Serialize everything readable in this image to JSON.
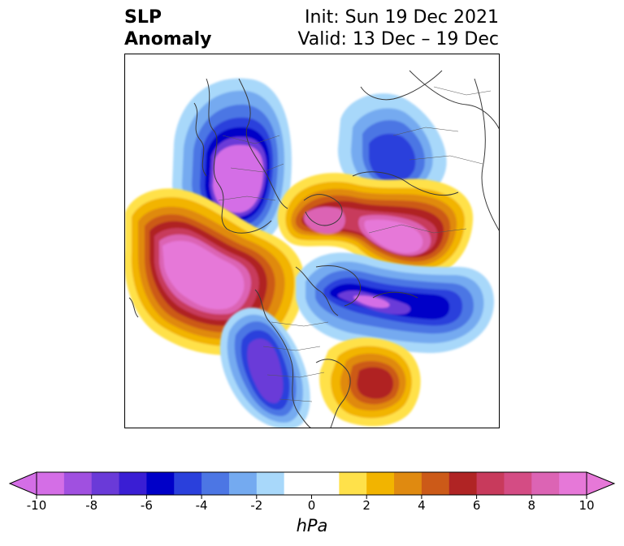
{
  "title": {
    "left_line1": "SLP",
    "left_line2": "Anomaly",
    "right_line1": "Init: Sun 19 Dec 2021",
    "right_line2": "Valid: 13 Dec – 19 Dec"
  },
  "colorbar": {
    "units": "hPa",
    "ticks": [
      "-10",
      "-8",
      "-6",
      "-4",
      "-2",
      "0",
      "2",
      "4",
      "6",
      "8",
      "10"
    ],
    "levels": [
      -10,
      -9,
      -8,
      -7,
      -6,
      -5,
      -4,
      -3,
      -2,
      -1,
      1,
      2,
      3,
      4,
      5,
      6,
      7,
      8,
      9,
      10
    ],
    "colors": [
      "#d46ee6",
      "#a050e0",
      "#6a3ad8",
      "#3a1ed4",
      "#0000c8",
      "#2a40dc",
      "#4c76e4",
      "#74aaf0",
      "#a8d8fa",
      "#ffffff",
      "#ffffff",
      "#ffe14a",
      "#f2b400",
      "#e08a10",
      "#cc5a18",
      "#b02424",
      "#c83a5c",
      "#d44c84",
      "#dc64b4",
      "#e678d8"
    ],
    "extend_min_color": "#d46ee6",
    "extend_max_color": "#e678d8"
  },
  "map": {
    "projection": "north-polar-stereographic",
    "region": "Northern Hemisphere",
    "features": [
      "Positive anomaly over Alaska and northeastern Pacific",
      "Negative anomaly over northern Europe and Scandinavia",
      "Positive anomaly over Siberia",
      "Negative anomaly over Greenland and Canadian Arctic",
      "Negative anomaly over northern Pacific near Aleutians",
      "Negative anomaly over western United States",
      "Positive anomaly off US East Coast"
    ]
  }
}
